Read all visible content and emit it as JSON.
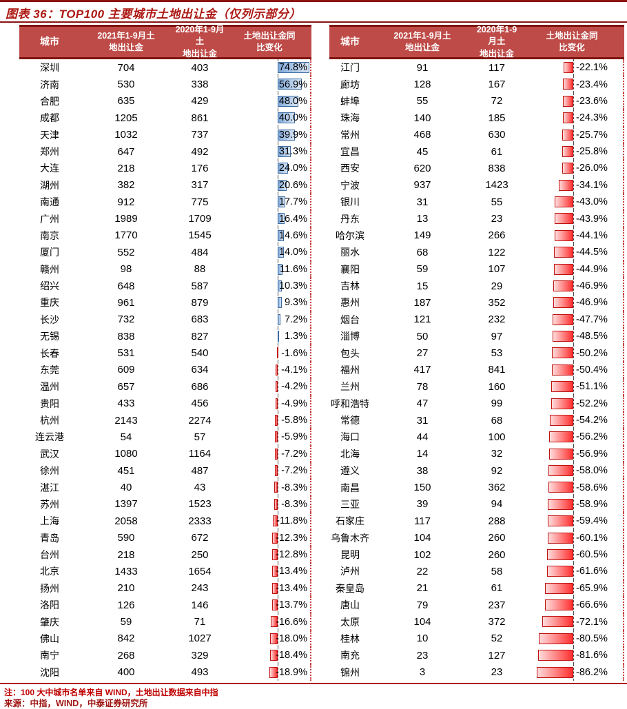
{
  "chart_data": {
    "type": "table",
    "title": "图表 36：TOP100 主要城市土地出让金（仅列示部分）",
    "headers": {
      "city": "城市",
      "y2021": [
        "2021年1-9月土",
        "地出让金"
      ],
      "y2020": [
        "2020年1-9月土",
        "地出让金"
      ],
      "change": [
        "土地出让金同",
        "比变化"
      ]
    },
    "left_rows": [
      [
        "深圳",
        "704",
        "403",
        "74.8%"
      ],
      [
        "济南",
        "530",
        "338",
        "56.9%"
      ],
      [
        "合肥",
        "635",
        "429",
        "48.0%"
      ],
      [
        "成都",
        "1205",
        "861",
        "40.0%"
      ],
      [
        "天津",
        "1032",
        "737",
        "39.9%"
      ],
      [
        "郑州",
        "647",
        "492",
        "31.3%"
      ],
      [
        "大连",
        "218",
        "176",
        "24.0%"
      ],
      [
        "湖州",
        "382",
        "317",
        "20.6%"
      ],
      [
        "南通",
        "912",
        "775",
        "17.7%"
      ],
      [
        "广州",
        "1989",
        "1709",
        "16.4%"
      ],
      [
        "南京",
        "1770",
        "1545",
        "14.6%"
      ],
      [
        "厦门",
        "552",
        "484",
        "14.0%"
      ],
      [
        "赣州",
        "98",
        "88",
        "11.6%"
      ],
      [
        "绍兴",
        "648",
        "587",
        "10.3%"
      ],
      [
        "重庆",
        "961",
        "879",
        "9.3%"
      ],
      [
        "长沙",
        "732",
        "683",
        "7.2%"
      ],
      [
        "无锡",
        "838",
        "827",
        "1.3%"
      ],
      [
        "长春",
        "531",
        "540",
        "-1.6%"
      ],
      [
        "东莞",
        "609",
        "634",
        "-4.1%"
      ],
      [
        "温州",
        "657",
        "686",
        "-4.2%"
      ],
      [
        "贵阳",
        "433",
        "456",
        "-4.9%"
      ],
      [
        "杭州",
        "2143",
        "2274",
        "-5.8%"
      ],
      [
        "连云港",
        "54",
        "57",
        "-5.9%"
      ],
      [
        "武汉",
        "1080",
        "1164",
        "-7.2%"
      ],
      [
        "徐州",
        "451",
        "487",
        "-7.2%"
      ],
      [
        "湛江",
        "40",
        "43",
        "-8.3%"
      ],
      [
        "苏州",
        "1397",
        "1523",
        "-8.3%"
      ],
      [
        "上海",
        "2058",
        "2333",
        "-11.8%"
      ],
      [
        "青岛",
        "590",
        "672",
        "-12.3%"
      ],
      [
        "台州",
        "218",
        "250",
        "-12.8%"
      ],
      [
        "北京",
        "1433",
        "1654",
        "-13.4%"
      ],
      [
        "扬州",
        "210",
        "243",
        "-13.4%"
      ],
      [
        "洛阳",
        "126",
        "146",
        "-13.7%"
      ],
      [
        "肇庆",
        "59",
        "71",
        "-16.6%"
      ],
      [
        "佛山",
        "842",
        "1027",
        "-18.0%"
      ],
      [
        "南宁",
        "268",
        "329",
        "-18.4%"
      ],
      [
        "沈阳",
        "400",
        "493",
        "-18.9%"
      ]
    ],
    "right_rows": [
      [
        "江门",
        "91",
        "117",
        "-22.1%"
      ],
      [
        "廊坊",
        "128",
        "167",
        "-23.4%"
      ],
      [
        "蚌埠",
        "55",
        "72",
        "-23.6%"
      ],
      [
        "珠海",
        "140",
        "185",
        "-24.3%"
      ],
      [
        "常州",
        "468",
        "630",
        "-25.7%"
      ],
      [
        "宜昌",
        "45",
        "61",
        "-25.8%"
      ],
      [
        "西安",
        "620",
        "838",
        "-26.0%"
      ],
      [
        "宁波",
        "937",
        "1423",
        "-34.1%"
      ],
      [
        "银川",
        "31",
        "55",
        "-43.0%"
      ],
      [
        "丹东",
        "13",
        "23",
        "-43.9%"
      ],
      [
        "哈尔滨",
        "149",
        "266",
        "-44.1%"
      ],
      [
        "丽水",
        "68",
        "122",
        "-44.5%"
      ],
      [
        "襄阳",
        "59",
        "107",
        "-44.9%"
      ],
      [
        "吉林",
        "15",
        "29",
        "-46.9%"
      ],
      [
        "惠州",
        "187",
        "352",
        "-46.9%"
      ],
      [
        "烟台",
        "121",
        "232",
        "-47.7%"
      ],
      [
        "淄博",
        "50",
        "97",
        "-48.5%"
      ],
      [
        "包头",
        "27",
        "53",
        "-50.2%"
      ],
      [
        "福州",
        "417",
        "841",
        "-50.4%"
      ],
      [
        "兰州",
        "78",
        "160",
        "-51.1%"
      ],
      [
        "呼和浩特",
        "47",
        "99",
        "-52.2%"
      ],
      [
        "常德",
        "31",
        "68",
        "-54.2%"
      ],
      [
        "海口",
        "44",
        "100",
        "-56.2%"
      ],
      [
        "北海",
        "14",
        "32",
        "-56.9%"
      ],
      [
        "遵义",
        "38",
        "92",
        "-58.0%"
      ],
      [
        "南昌",
        "150",
        "362",
        "-58.6%"
      ],
      [
        "三亚",
        "39",
        "94",
        "-58.9%"
      ],
      [
        "石家庄",
        "117",
        "288",
        "-59.4%"
      ],
      [
        "乌鲁木齐",
        "104",
        "260",
        "-60.1%"
      ],
      [
        "昆明",
        "102",
        "260",
        "-60.5%"
      ],
      [
        "泸州",
        "22",
        "58",
        "-61.6%"
      ],
      [
        "秦皇岛",
        "21",
        "61",
        "-65.9%"
      ],
      [
        "唐山",
        "79",
        "237",
        "-66.6%"
      ],
      [
        "太原",
        "104",
        "372",
        "-72.1%"
      ],
      [
        "桂林",
        "10",
        "52",
        "-80.5%"
      ],
      [
        "南充",
        "23",
        "127",
        "-81.6%"
      ],
      [
        "锦州",
        "3",
        "23",
        "-86.2%"
      ]
    ]
  },
  "footer": {
    "note": "注：100 大中城市名单来自 WIND，土地出让数据来自中指",
    "source": "来源：中指，WIND，中泰证券研究所"
  },
  "colors": {
    "title_red": "#AD1712",
    "rule_red": "#8B1210",
    "header_bg": "#BE4B48",
    "header_border": "#7F1310",
    "positive_bar": "#7FA8D9",
    "positive_bar_border": "#3E6CA0",
    "negative_bar": "#FF2F2F",
    "negative_bar_border": "#BE1310",
    "note_red": "#C00000",
    "source_red": "#9E1310"
  }
}
